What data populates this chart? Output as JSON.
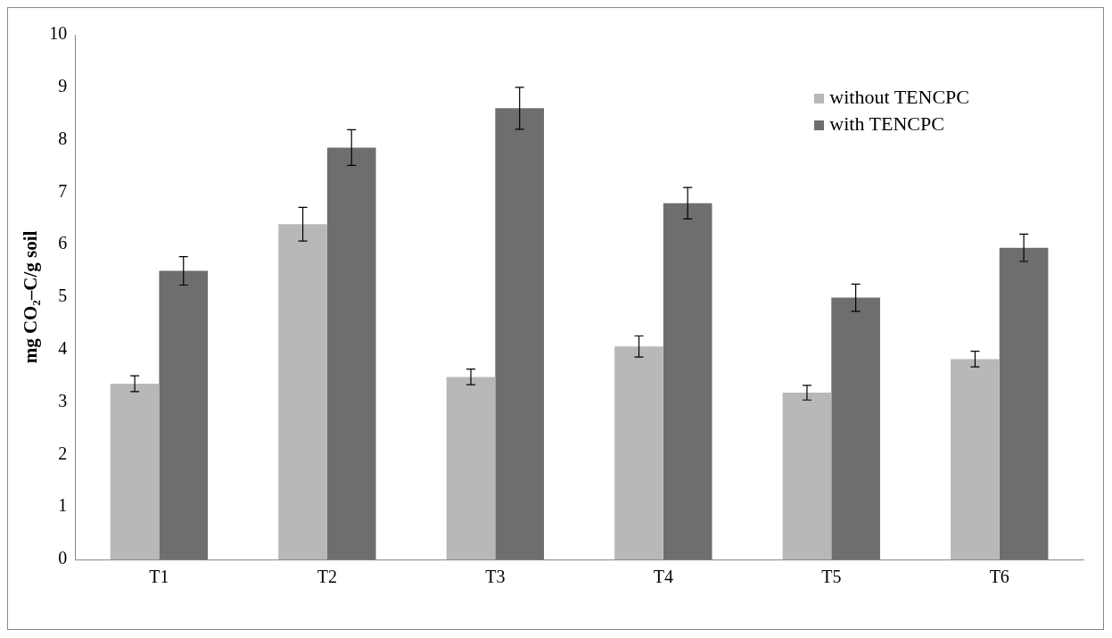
{
  "chart_data": {
    "type": "bar",
    "ylabel": "mg CO₂–C/g soil",
    "categories": [
      "T1",
      "T2",
      "T3",
      "T4",
      "T5",
      "T6"
    ],
    "series": [
      {
        "name": "without TENCPC",
        "color": "#b8b8b8",
        "values": [
          3.35,
          6.39,
          3.48,
          4.06,
          3.18,
          3.82
        ],
        "errors": [
          0.15,
          0.32,
          0.15,
          0.2,
          0.14,
          0.15
        ]
      },
      {
        "name": "with TENCPC",
        "color": "#6e6e6e",
        "values": [
          5.5,
          7.85,
          8.6,
          6.79,
          4.99,
          5.94
        ],
        "errors": [
          0.27,
          0.34,
          0.4,
          0.3,
          0.26,
          0.26
        ]
      }
    ],
    "ylim": [
      0,
      10
    ],
    "yticks": [
      0,
      1,
      2,
      3,
      4,
      5,
      6,
      7,
      8,
      9,
      10
    ],
    "grid": false,
    "legend": "top right"
  }
}
